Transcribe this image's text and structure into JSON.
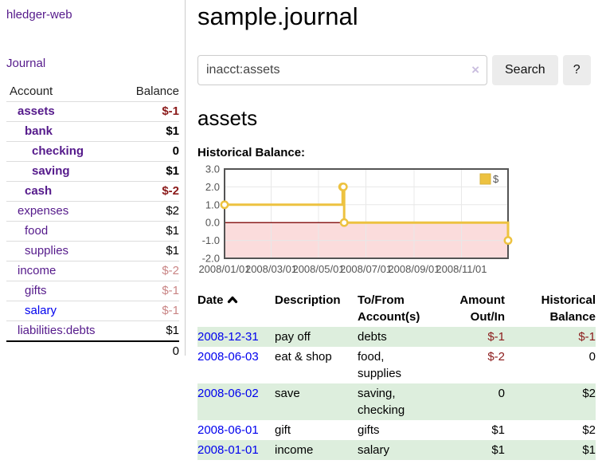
{
  "brand": "hledger-web",
  "nav": {
    "journal": "Journal"
  },
  "page_title": "sample.journal",
  "search": {
    "value": "inacct:assets",
    "clear_icon": "×",
    "search_button": "Search",
    "help_button": "?"
  },
  "account_heading": "assets",
  "chart_title": "Historical Balance:",
  "colors": {
    "link_purple": "#551a8b",
    "link_blue": "#0000ee",
    "negative_strong": "#8b1a1a",
    "negative_soft": "#c98585",
    "row_stripe_green": "#ddeedd",
    "chart_line": "#edc240",
    "chart_negative_region": "#fbdcdc",
    "chart_zero_line": "#8b1d1d",
    "chart_border": "#545454",
    "chart_grid": "#e8e8e8"
  },
  "sidebar_accounts": {
    "headers": {
      "account": "Account",
      "balance": "Balance"
    },
    "rows": [
      {
        "name": "assets",
        "balance": "$-1",
        "level": 0,
        "emphasis": true,
        "negative": "strong"
      },
      {
        "name": "bank",
        "balance": "$1",
        "level": 1,
        "emphasis": true,
        "negative": null
      },
      {
        "name": "checking",
        "balance": "0",
        "level": 2,
        "emphasis": true,
        "negative": null
      },
      {
        "name": "saving",
        "balance": "$1",
        "level": 2,
        "emphasis": true,
        "negative": null
      },
      {
        "name": "cash",
        "balance": "$-2",
        "level": 1,
        "emphasis": true,
        "negative": "strong"
      },
      {
        "name": "expenses",
        "balance": "$2",
        "level": 0,
        "emphasis": false,
        "negative": null
      },
      {
        "name": "food",
        "balance": "$1",
        "level": 1,
        "emphasis": false,
        "negative": null
      },
      {
        "name": "supplies",
        "balance": "$1",
        "level": 1,
        "emphasis": false,
        "negative": null
      },
      {
        "name": "income",
        "balance": "$-2",
        "level": 0,
        "emphasis": false,
        "negative": "soft"
      },
      {
        "name": "gifts",
        "balance": "$-1",
        "level": 1,
        "emphasis": false,
        "negative": "soft"
      },
      {
        "name": "salary",
        "balance": "$-1",
        "level": 1,
        "emphasis": false,
        "negative": "soft",
        "link": "blue"
      },
      {
        "name": "liabilities:debts",
        "balance": "$1",
        "level": 0,
        "emphasis": false,
        "negative": null
      }
    ],
    "total": "0"
  },
  "register": {
    "headers": {
      "date": "Date",
      "description": "Description",
      "accounts": "To/From Account(s)",
      "amount": "Amount Out/In",
      "balance": "Historical Balance"
    },
    "rows": [
      {
        "date": "2008-12-31",
        "description": "pay off",
        "accounts": "debts",
        "amount": "$-1",
        "balance": "$-1"
      },
      {
        "date": "2008-06-03",
        "description": "eat & shop",
        "accounts": "food, supplies",
        "amount": "$-2",
        "balance": "0"
      },
      {
        "date": "2008-06-02",
        "description": "save",
        "accounts": "saving, checking",
        "amount": "0",
        "balance": "$2"
      },
      {
        "date": "2008-06-01",
        "description": "gift",
        "accounts": "gifts",
        "amount": "$1",
        "balance": "$2"
      },
      {
        "date": "2008-01-01",
        "description": "income",
        "accounts": "salary",
        "amount": "$1",
        "balance": "$1"
      }
    ]
  },
  "chart_data": {
    "type": "line",
    "step": true,
    "title": "Historical Balance:",
    "series": [
      {
        "name": "$",
        "color": "#edc240",
        "points": [
          {
            "date": "2008-01-01",
            "value": 1
          },
          {
            "date": "2008-06-01",
            "value": 2
          },
          {
            "date": "2008-06-02",
            "value": 2
          },
          {
            "date": "2008-06-03",
            "value": 0
          },
          {
            "date": "2008-12-31",
            "value": -1
          }
        ]
      }
    ],
    "x_range": [
      "2008-01-01",
      "2008-12-31"
    ],
    "x_ticks": [
      "2008/01/01",
      "2008/03/01",
      "2008/05/01",
      "2008/07/01",
      "2008/09/01",
      "2008/11/01"
    ],
    "y_ticks": [
      3.0,
      2.0,
      1.0,
      0.0,
      -1.0,
      -2.0
    ],
    "ylim": [
      -2,
      3
    ],
    "grid": true,
    "legend_position": "top-right"
  }
}
